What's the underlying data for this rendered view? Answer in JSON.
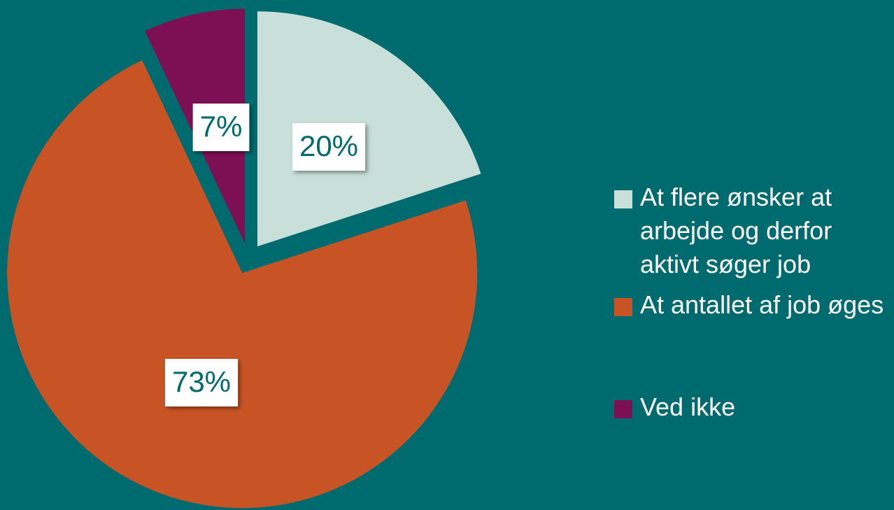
{
  "chart_data": {
    "type": "pie",
    "categories": [
      "At flere ønsker at arbejde og derfor aktivt søger job",
      "At antallet af job øges",
      "Ved ikke"
    ],
    "values": [
      20,
      73,
      7
    ],
    "value_labels": [
      "20%",
      "73%",
      "7%"
    ],
    "colors": [
      "#c9dfd9",
      "#c85425",
      "#7d0f55"
    ],
    "legend": "right"
  }
}
